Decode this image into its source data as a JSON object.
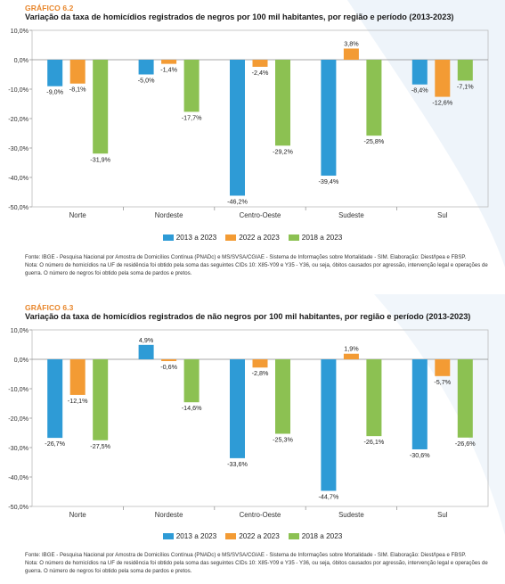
{
  "colors": {
    "s2013": "#2e9bd6",
    "s2022": "#f39b34",
    "s2018": "#8cc152",
    "label": "#e8862b"
  },
  "panels": [
    {
      "label": "GRÁFICO 6.2",
      "title": "Variação da taxa de homicídios registrados de negros por 100 mil habitantes, por região e período (2013-2023)",
      "source": "Fonte: IBGE - Pesquisa Nacional por Amostra de Domicílios Contínua (PNADc) e MS/SVSA/CGIAE - Sistema de Informações sobre Mortalidade - SIM. Elaboração: Diest/Ipea e FBSP.",
      "note": "Nota: O número de homicídios na UF de residência foi obtido pela soma das seguintes CIDs 10: X85-Y09 e Y35 - Y36, ou seja, óbitos causados por agressão, intervenção legal e operações de guerra. O número de negros foi obtido pela soma de pardos e pretos.",
      "chart_data": {
        "type": "bar",
        "categories": [
          "Norte",
          "Nordeste",
          "Centro-Oeste",
          "Sudeste",
          "Sul"
        ],
        "series": [
          {
            "name": "2013 a 2023",
            "values": [
              -9.0,
              -5.0,
              -46.2,
              -39.4,
              -8.4
            ],
            "labels": [
              "-9,0%",
              "-5,0%",
              "-46,2%",
              "-39,4%",
              "-8,4%"
            ]
          },
          {
            "name": "2022 a 2023",
            "values": [
              -8.1,
              -1.4,
              -2.4,
              3.8,
              -12.6
            ],
            "labels": [
              "-8,1%",
              "-1,4%",
              "-2,4%",
              "3,8%",
              "-12,6%"
            ]
          },
          {
            "name": "2018 a 2023",
            "values": [
              -31.9,
              -17.7,
              -29.2,
              -25.8,
              -7.1
            ],
            "labels": [
              "-31,9%",
              "-17,7%",
              "-29,2%",
              "-25,8%",
              "-7,1%"
            ]
          }
        ],
        "ylim": [
          -50,
          10
        ],
        "yticks": [
          10,
          0,
          -10,
          -20,
          -30,
          -40,
          -50
        ],
        "ytick_labels": [
          "10,0%",
          "0,0%",
          "-10,0%",
          "-20,0%",
          "-30,0%",
          "-40,0%",
          "-50,0%"
        ],
        "legend": "bottom-center"
      }
    },
    {
      "label": "GRÁFICO 6.3",
      "title": "Variação da taxa de homicídios registrados de não negros por 100 mil habitantes, por região e período (2013-2023)",
      "source": "Fonte: IBGE - Pesquisa Nacional por Amostra de Domicílios Contínua (PNADc) e MS/SVSA/CGIAE - Sistema de Informações sobre Mortalidade - SIM. Elaboração: Diest/Ipea e FBSP.",
      "note": "Nota: O número de homicídios na UF de residência foi obtido pela soma das seguintes CIDs 10: X85-Y09 e Y35 - Y36, ou seja, óbitos causados por agressão, intervenção legal e operações de guerra. O número de negros foi obtido pela soma de pardos e pretos.",
      "chart_data": {
        "type": "bar",
        "categories": [
          "Norte",
          "Nordeste",
          "Centro-Oeste",
          "Sudeste",
          "Sul"
        ],
        "series": [
          {
            "name": "2013 a 2023",
            "values": [
              -26.7,
              4.9,
              -33.6,
              -44.7,
              -30.6
            ],
            "labels": [
              "-26,7%",
              "4,9%",
              "-33,6%",
              "-44,7%",
              "-30,6%"
            ]
          },
          {
            "name": "2022 a 2023",
            "values": [
              -12.1,
              -0.6,
              -2.8,
              1.9,
              -5.7
            ],
            "labels": [
              "-12,1%",
              "-0,6%",
              "-2,8%",
              "1,9%",
              "-5,7%"
            ]
          },
          {
            "name": "2018 a 2023",
            "values": [
              -27.5,
              -14.6,
              -25.3,
              -26.1,
              -26.6
            ],
            "labels": [
              "-27,5%",
              "-14,6%",
              "-25,3%",
              "-26,1%",
              "-26,6%"
            ]
          }
        ],
        "ylim": [
          -50,
          10
        ],
        "yticks": [
          10,
          0,
          -10,
          -20,
          -30,
          -40,
          -50
        ],
        "ytick_labels": [
          "10,0%",
          "0,0%",
          "-10,0%",
          "-20,0%",
          "-30,0%",
          "-40,0%",
          "-50,0%"
        ],
        "legend": "bottom-center"
      }
    }
  ]
}
